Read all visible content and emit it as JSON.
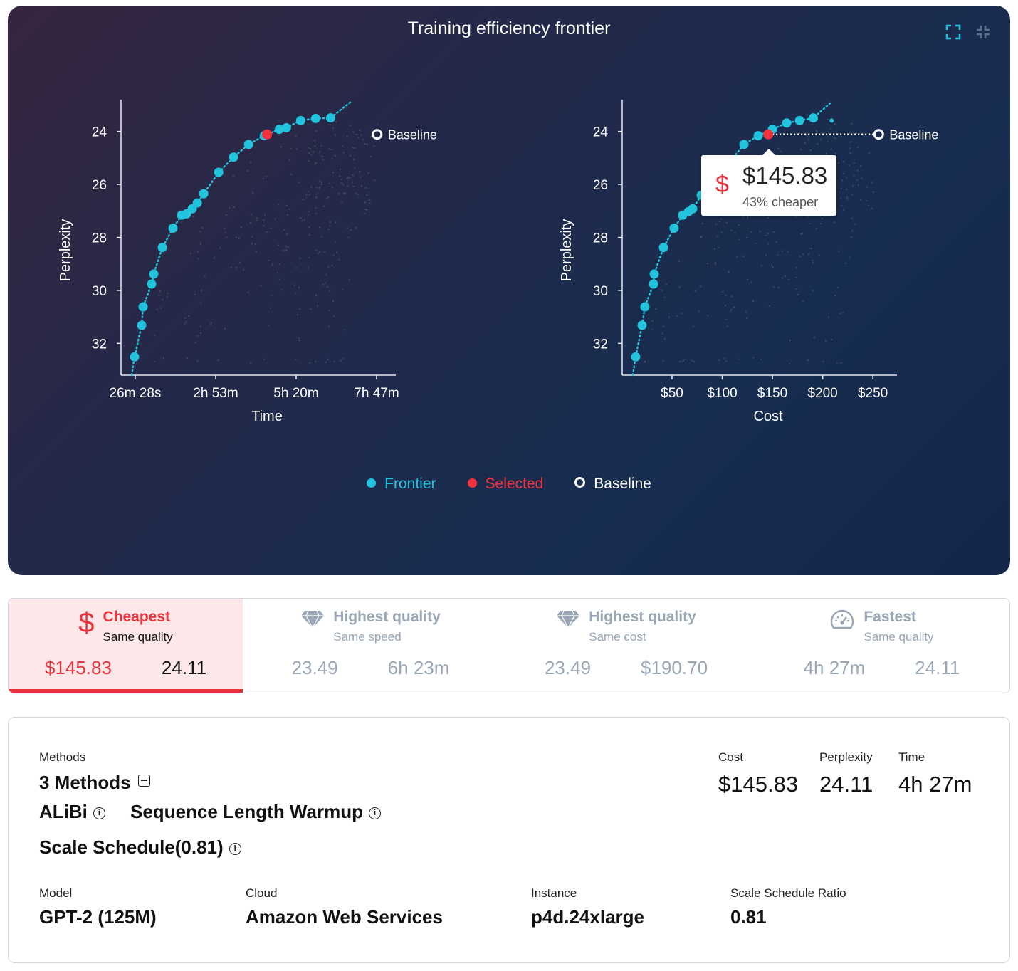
{
  "hero": {
    "title": "Training efficiency frontier",
    "icons": [
      "expand-icon",
      "collapse-icon"
    ],
    "tooltip": {
      "icon": "dollar-icon",
      "value": "$145.83",
      "note": "43% cheaper"
    },
    "legend": [
      {
        "label": "Frontier",
        "color": "#22c3dd"
      },
      {
        "label": "Selected",
        "color": "#f2323c"
      },
      {
        "label": "Baseline",
        "color": "#ffffff"
      }
    ]
  },
  "chart_data": [
    {
      "type": "scatter",
      "xlabel": "Time",
      "ylabel": "Perplexity",
      "x_unit": "minutes",
      "x_ticks": [
        26.47,
        173.3,
        320.1,
        466.9
      ],
      "x_tick_labels": [
        "26m 28s",
        "2h 53m",
        "5h 20m",
        "7h 47m"
      ],
      "y_ticks": [
        24,
        26,
        28,
        30,
        32
      ],
      "y_tick_labels": [
        "24",
        "26",
        "28",
        "30",
        "32"
      ],
      "xlim": [
        0.5,
        502
      ],
      "ylim": [
        33.2,
        22.8
      ],
      "y_inverted": true,
      "frontier": [
        [
          25.2,
          32.51
        ],
        [
          38.2,
          31.32
        ],
        [
          40.8,
          30.62
        ],
        [
          56.4,
          29.76
        ],
        [
          60.3,
          29.38
        ],
        [
          75.9,
          28.38
        ],
        [
          95.4,
          27.65
        ],
        [
          111.0,
          27.16
        ],
        [
          120.1,
          27.11
        ],
        [
          130.5,
          26.92
        ],
        [
          139.7,
          26.7
        ],
        [
          151.4,
          26.35
        ],
        [
          178.7,
          25.54
        ],
        [
          206.0,
          24.97
        ],
        [
          233.3,
          24.49
        ],
        [
          262.0,
          24.16
        ],
        [
          289.3,
          23.92
        ],
        [
          302.3,
          23.86
        ],
        [
          328.3,
          23.59
        ],
        [
          355.6,
          23.51
        ],
        [
          383.0,
          23.49
        ]
      ],
      "selected": [
        267,
        24.11
      ],
      "baseline": {
        "label": "Baseline",
        "point": [
          468,
          24.11
        ]
      }
    },
    {
      "type": "scatter",
      "xlabel": "Cost",
      "ylabel": "Perplexity",
      "x_unit": "USD",
      "x_ticks": [
        50,
        100,
        150,
        200,
        250
      ],
      "x_tick_labels": [
        "$50",
        "$100",
        "$150",
        "$200",
        "$250"
      ],
      "y_ticks": [
        24,
        26,
        28,
        30,
        32
      ],
      "y_tick_labels": [
        "24",
        "26",
        "28",
        "30",
        "32"
      ],
      "xlim": [
        0.4,
        274
      ],
      "ylim": [
        33.2,
        22.8
      ],
      "y_inverted": true,
      "frontier": [
        [
          13.8,
          32.51
        ],
        [
          20.2,
          31.32
        ],
        [
          23.0,
          30.62
        ],
        [
          31.6,
          29.76
        ],
        [
          32.3,
          29.38
        ],
        [
          41.5,
          28.38
        ],
        [
          52.1,
          27.65
        ],
        [
          60.6,
          27.16
        ],
        [
          66.3,
          27.03
        ],
        [
          70.6,
          26.92
        ],
        [
          79.1,
          26.41
        ],
        [
          89.7,
          25.9
        ],
        [
          107.4,
          25.16
        ],
        [
          121.6,
          24.49
        ],
        [
          135.8,
          24.16
        ],
        [
          150.0,
          23.92
        ],
        [
          164.2,
          23.68
        ],
        [
          177.0,
          23.59
        ],
        [
          190.7,
          23.49
        ]
      ],
      "extra_points": [
        [
          208.9,
          23.59
        ]
      ],
      "selected": [
        145.83,
        24.11
      ],
      "baseline": {
        "label": "Baseline",
        "point": [
          255.8,
          24.11
        ]
      }
    }
  ],
  "cards": [
    {
      "icon": "dollar-icon",
      "title": "Cheapest",
      "subtitle": "Same quality",
      "values": [
        "$145.83",
        "24.11"
      ],
      "active": true
    },
    {
      "icon": "diamond-icon",
      "title": "Highest quality",
      "subtitle": "Same speed",
      "values": [
        "23.49",
        "6h 23m"
      ],
      "active": false
    },
    {
      "icon": "diamond-icon",
      "title": "Highest quality",
      "subtitle": "Same cost",
      "values": [
        "23.49",
        "$190.70"
      ],
      "active": false
    },
    {
      "icon": "speedometer-icon",
      "title": "Fastest",
      "subtitle": "Same quality",
      "values": [
        "4h 27m",
        "24.11"
      ],
      "active": false
    }
  ],
  "details": {
    "methods_label": "Methods",
    "methods_count": "3 Methods",
    "methods": [
      "ALiBi",
      "Sequence Length Warmup",
      "Scale Schedule(0.81)"
    ],
    "metrics": [
      {
        "label": "Cost",
        "value": "$145.83"
      },
      {
        "label": "Perplexity",
        "value": "24.11"
      },
      {
        "label": "Time",
        "value": "4h 27m"
      }
    ],
    "specs": [
      {
        "label": "Model",
        "value": "GPT-2 (125M)"
      },
      {
        "label": "Cloud",
        "value": "Amazon Web Services"
      },
      {
        "label": "Instance",
        "value": "p4d.24xlarge"
      },
      {
        "label": "Scale Schedule Ratio",
        "value": "0.81"
      }
    ]
  },
  "colors": {
    "accent": "#22c3dd",
    "selected": "#e8323c",
    "muted": "#9aa6b6"
  }
}
